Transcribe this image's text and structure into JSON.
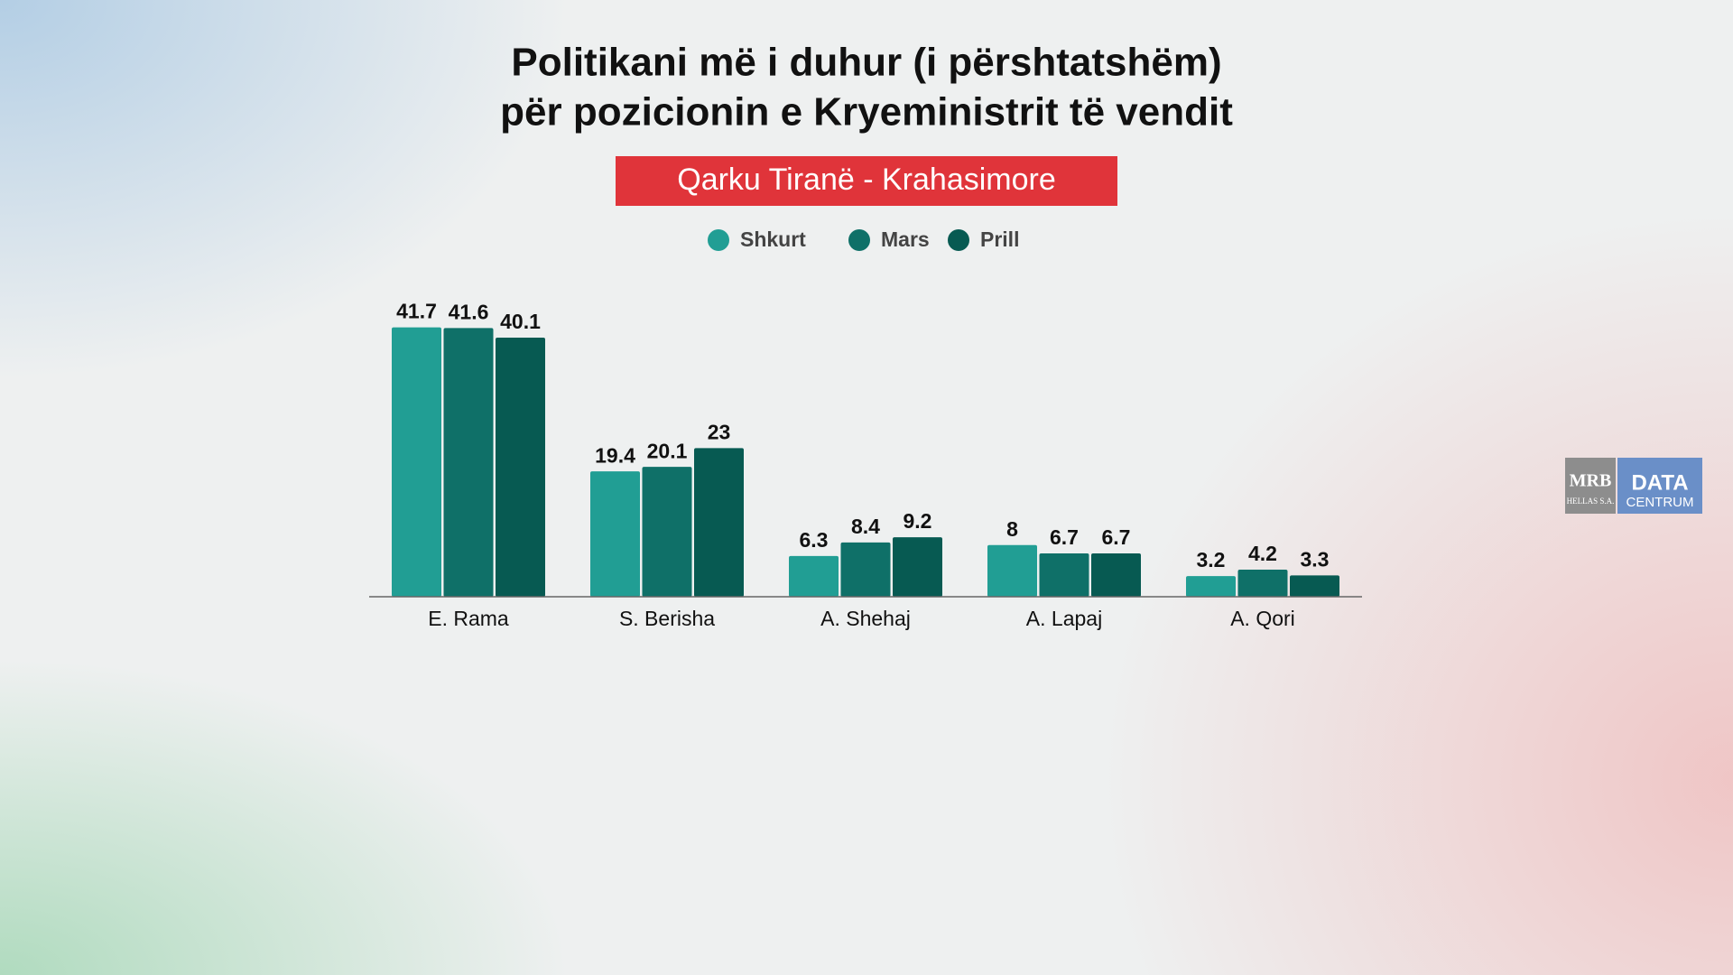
{
  "chart_data": {
    "type": "bar",
    "title": [
      "Politikani më i duhur (i përshtatshëm)",
      "për pozicionin e Kryeministrit të vendit"
    ],
    "subtitle": "Qarku Tiranë - Krahasimore",
    "categories": [
      "E. Rama",
      "S. Berisha",
      "A. Shehaj",
      "A. Lapaj",
      "A. Qori"
    ],
    "series": [
      {
        "name": "Shkurt",
        "color": "#219e94",
        "values": [
          41.7,
          19.4,
          6.3,
          8,
          3.2
        ]
      },
      {
        "name": "Mars",
        "color": "#0f7068",
        "values": [
          41.6,
          20.1,
          8.4,
          6.7,
          4.2
        ]
      },
      {
        "name": "Prill",
        "color": "#075a52",
        "values": [
          40.1,
          23,
          9.2,
          6.7,
          3.3
        ]
      }
    ],
    "ylim": [
      0,
      45
    ]
  },
  "branding": {
    "left": [
      "MRB",
      "HELLAS S.A."
    ],
    "right": [
      "DATA",
      "CENTRUM"
    ]
  }
}
